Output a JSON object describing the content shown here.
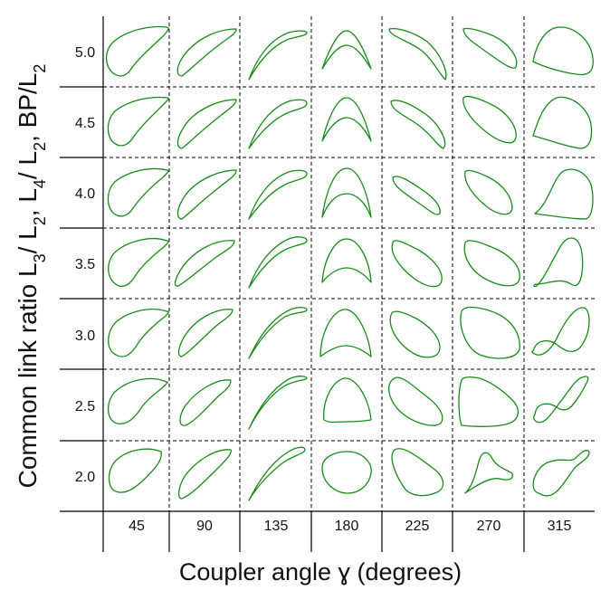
{
  "figure": {
    "x_axis_title": "Coupler angle ɣ (degrees)",
    "y_axis_title": {
      "parts": [
        {
          "t": "Common link ratio L"
        },
        {
          "t": "3",
          "sub": true
        },
        {
          "t": "/ L"
        },
        {
          "t": "2",
          "sub": true
        },
        {
          "t": ", L"
        },
        {
          "t": "4",
          "sub": true
        },
        {
          "t": "/ L"
        },
        {
          "t": "2",
          "sub": true
        },
        {
          "t": ", BP/L"
        },
        {
          "t": "2",
          "sub": true
        }
      ]
    },
    "columns": [
      "45",
      "90",
      "135",
      "180",
      "225",
      "270",
      "315"
    ],
    "rows": [
      "5.0",
      "4.5",
      "4.0",
      "3.5",
      "3.0",
      "2.5",
      "2.0"
    ],
    "curve_color": "#1a8a1a"
  }
}
